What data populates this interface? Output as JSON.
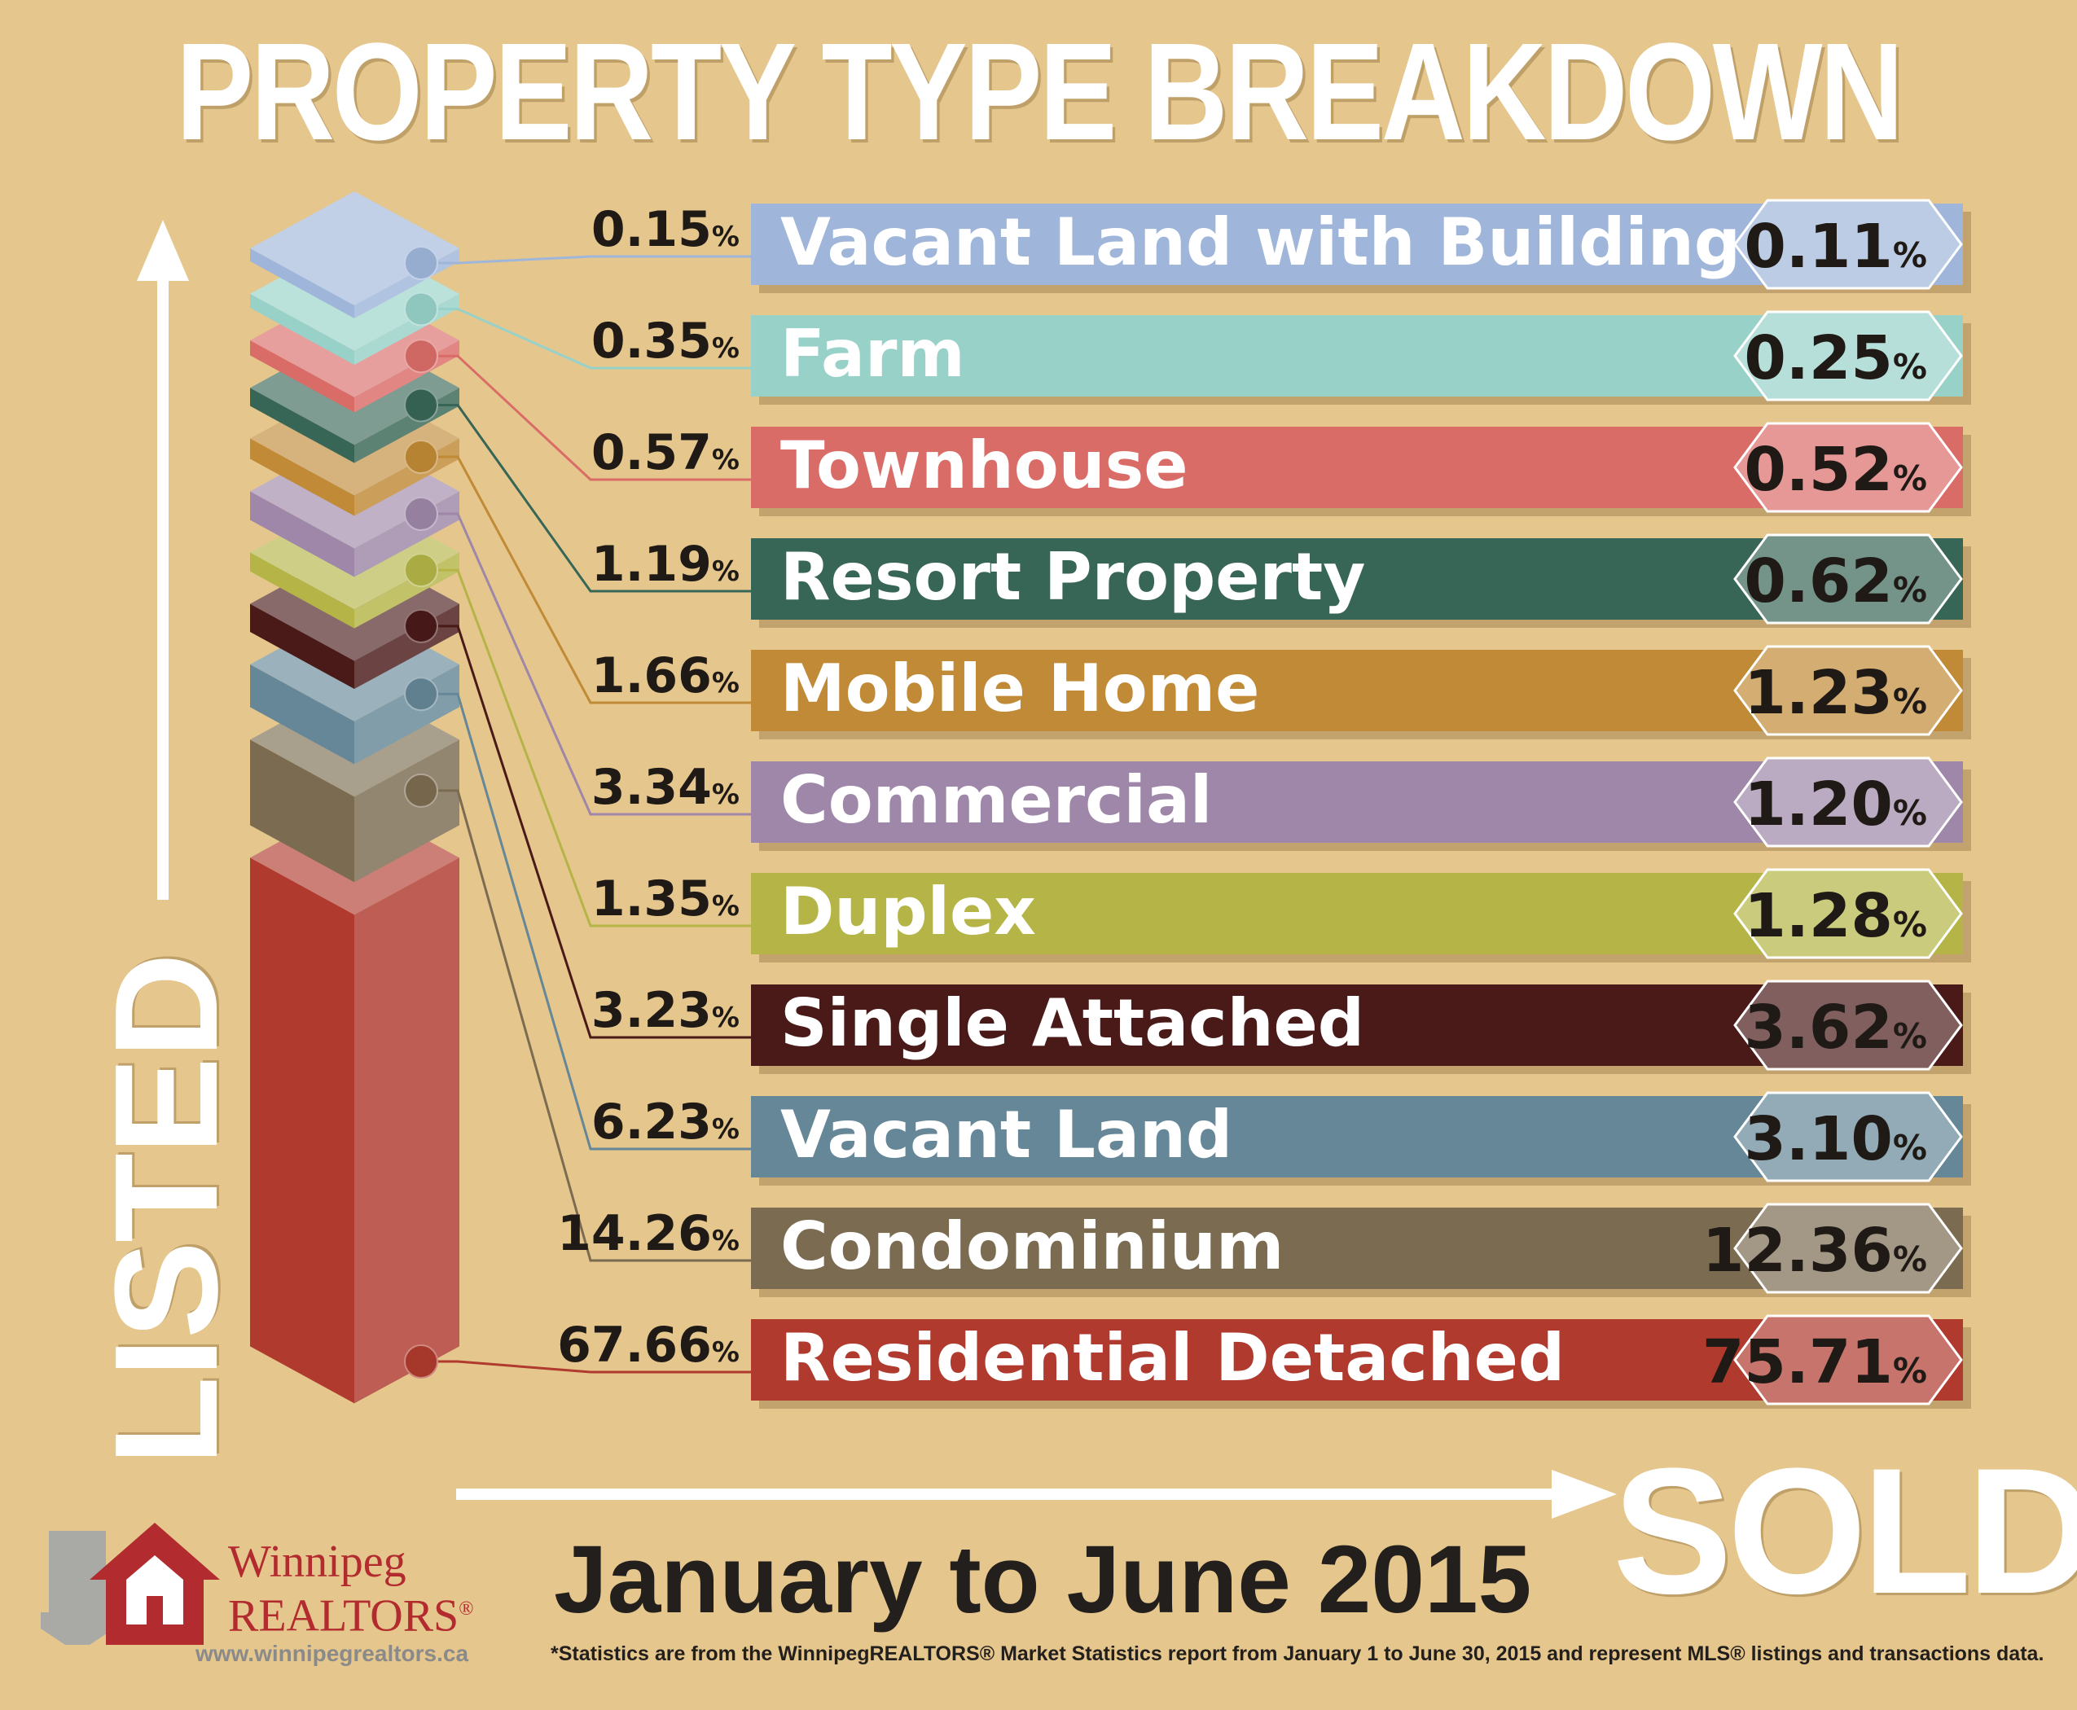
{
  "title": "PROPERTY TYPE BREAKDOWN",
  "listed_label": "LISTED",
  "sold_label": "SOLD",
  "date_range": "January to June 2015",
  "footnote": "*Statistics are from the WinnipegREALTORS® Market Statistics report from January 1 to June 30, 2015 and represent MLS® listings and transactions data.",
  "logo": {
    "name": "Winnipeg",
    "sub": "REALTORS",
    "sub_mark": "®",
    "url": "www.winnipegrealtors.ca",
    "icon": "house-arrow-icon"
  },
  "percent_symbol": "%",
  "chart_data": {
    "type": "bar",
    "title": "PROPERTY TYPE BREAKDOWN",
    "xlabel": "SOLD",
    "ylabel": "LISTED",
    "series": [
      {
        "name": "Listed",
        "values": [
          0.15,
          0.35,
          0.57,
          1.19,
          1.66,
          3.34,
          1.35,
          3.23,
          6.23,
          14.26,
          67.66
        ]
      },
      {
        "name": "Sold",
        "values": [
          0.11,
          0.25,
          0.52,
          0.62,
          1.23,
          1.2,
          1.28,
          3.62,
          3.1,
          12.36,
          75.71
        ]
      }
    ],
    "categories": [
      "Vacant Land with Building",
      "Farm",
      "Townhouse",
      "Resort Property",
      "Mobile Home",
      "Commercial",
      "Duplex",
      "Single Attached",
      "Vacant Land",
      "Condominium",
      "Residential Detached"
    ],
    "listed_labels": [
      "0.15",
      "0.35",
      "0.57",
      "1.19",
      "1.66",
      "3.34",
      "1.35",
      "3.23",
      "6.23",
      "14.26",
      "67.66"
    ],
    "sold_labels": [
      "0.11",
      "0.25",
      "0.52",
      "0.62",
      "1.23",
      "1.20",
      "1.28",
      "3.62",
      "3.10",
      "12.36",
      "75.71"
    ],
    "colors": [
      "#9fb6da",
      "#97d1c8",
      "#da6c68",
      "#386656",
      "#c08a36",
      "#9e87a8",
      "#b4b447",
      "#4a1a19",
      "#658797",
      "#7b6b50",
      "#af3a2d"
    ],
    "units": "%"
  }
}
